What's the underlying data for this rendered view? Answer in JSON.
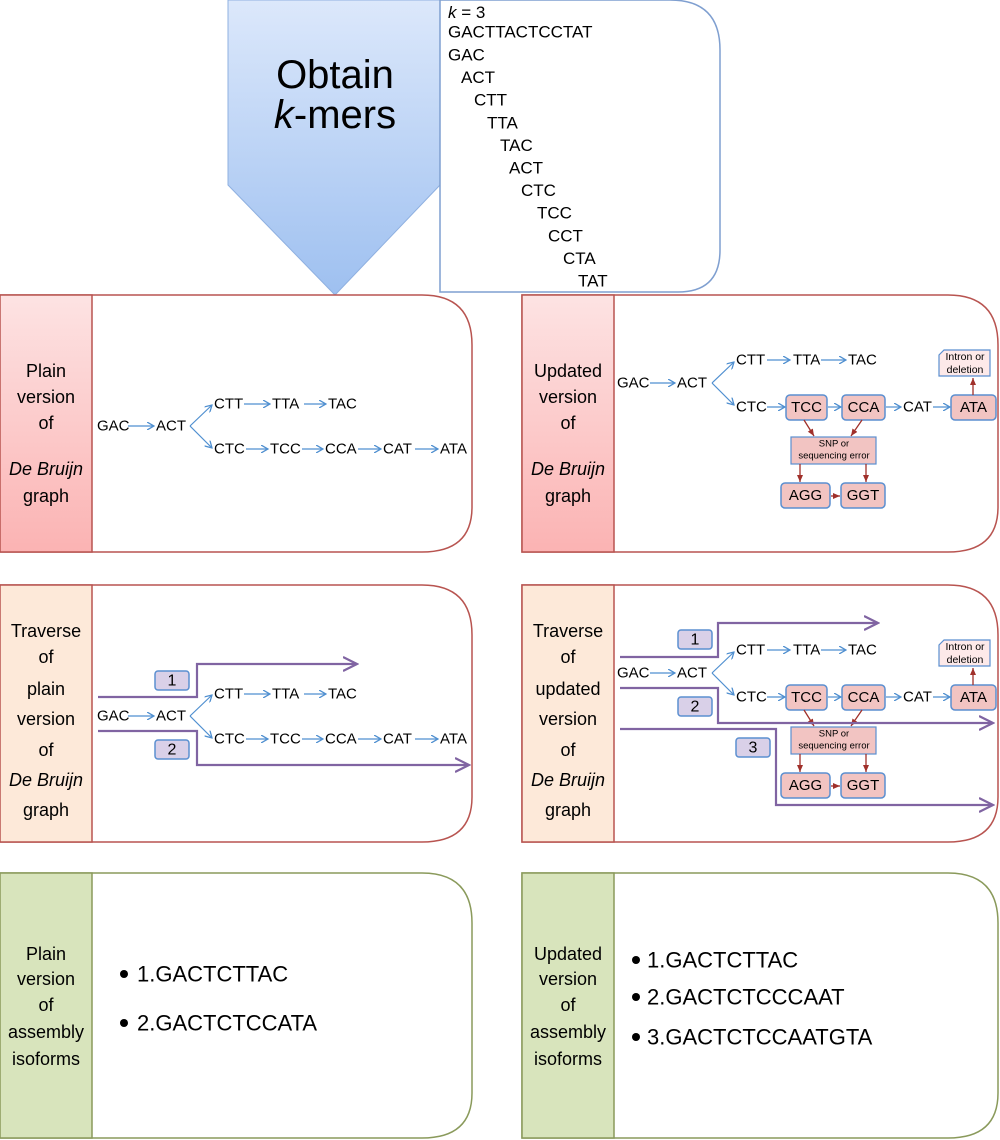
{
  "header": {
    "title_line1": "Obtain",
    "title_k": "k",
    "title_rest": "-mers"
  },
  "kmers": {
    "k_label": "k",
    "k_value": " = 3",
    "sequence": "GACTTACTCCTAT",
    "list": [
      "GAC",
      "ACT",
      "CTT",
      "TTA",
      "TAC",
      "ACT",
      "CTC",
      "TCC",
      "CCT",
      "CTA",
      "TAT"
    ]
  },
  "panels": {
    "plain_graph": {
      "label": [
        "Plain",
        "version",
        "of",
        "De Bruijn",
        "graph"
      ]
    },
    "updated_graph": {
      "label": [
        "Updated",
        "version",
        "of",
        "De Bruijn",
        "graph"
      ]
    },
    "traverse_plain": {
      "label": [
        "Traverse",
        "of",
        "plain",
        "version",
        "of",
        "De Bruijn",
        "graph"
      ],
      "paths": [
        "1",
        "2"
      ]
    },
    "traverse_updated": {
      "label": [
        "Traverse",
        "of",
        "updated",
        "version",
        "of",
        "De Bruijn",
        "graph"
      ],
      "paths": [
        "1",
        "2",
        "3"
      ]
    },
    "plain_isoforms": {
      "label": [
        "Plain",
        "version",
        "of",
        "assembly",
        "isoforms"
      ],
      "items": [
        "1.GACTCTTAC",
        "2.GACTCTCCATA"
      ]
    },
    "updated_isoforms": {
      "label": [
        "Updated",
        "version",
        "of",
        "assembly",
        "isoforms"
      ],
      "items": [
        "1.GACTCTTAC",
        "2.GACTCTCCCAAT",
        "3.GACTCTCCAATGTA"
      ]
    }
  },
  "nodes": {
    "GAC": "GAC",
    "ACT": "ACT",
    "CTT": "CTT",
    "TTA": "TTA",
    "TAC": "TAC",
    "CTC": "CTC",
    "TCC": "TCC",
    "CCA": "CCA",
    "CAT": "CAT",
    "ATA": "ATA",
    "AGG": "AGG",
    "GGT": "GGT"
  },
  "annotations": {
    "snp": [
      "SNP or",
      "sequencing error"
    ],
    "intron": [
      "Intron or",
      "deletion"
    ]
  },
  "colors": {
    "arrow_blue": "#4f8fd0",
    "arrow_red": "#a0302a",
    "path_purple": "#8064a2",
    "graph_sidebar": "#fcc4c4",
    "traverse_sidebar": "#fde9d9",
    "isoform_sidebar": "#d8e4bc",
    "node_fill": "#f2c4c2",
    "node_border": "#5b8fd0",
    "label_fill": "#d9d0e8"
  }
}
